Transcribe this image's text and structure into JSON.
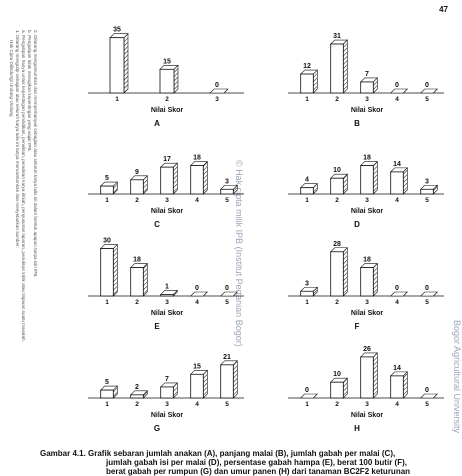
{
  "page_number": "47",
  "side_notes": [
    "Hak Cipta Dilindungi Undang-Undang",
    "1. Dilarang mengutip sebagian atau seluruh karya tulis ini tanpa mencantumkan dan menyebutkan sumber:",
    "a. Pengutipan hanya untuk kepentingan pendidikan, penelitian, penulisan karya ilmiah, penyusunan laporan, penulisan kritik atau tinjauan suatu masalah.",
    "b. Pengutipan tidak merugikan kepentingan yang wajar IPB.",
    "2. Dilarang mengumumkan dan memperbanyak sebagian atau seluruh karya tulis ini dalam bentuk apapun tanpa izin IPB."
  ],
  "watermarks": [
    "© Hak cipta milik IPB (Institut Pertanian Bogor)",
    "Bogor Agricultural University"
  ],
  "chart_data": [
    {
      "type": "bar",
      "panel": "A",
      "xlabel": "Nilai Skor",
      "categories": [
        "1",
        "2",
        "3"
      ],
      "values": [
        35,
        15,
        0
      ]
    },
    {
      "type": "bar",
      "panel": "B",
      "xlabel": "Nilai Skor",
      "categories": [
        "1",
        "2",
        "3",
        "4",
        "5"
      ],
      "values": [
        12,
        31,
        7,
        0,
        0
      ]
    },
    {
      "type": "bar",
      "panel": "C",
      "xlabel": "Nilai Skor",
      "categories": [
        "1",
        "2",
        "3",
        "4",
        "5"
      ],
      "values": [
        5,
        9,
        17,
        18,
        3
      ]
    },
    {
      "type": "bar",
      "panel": "D",
      "xlabel": "Nilai Skor",
      "categories": [
        "1",
        "2",
        "3",
        "4",
        "5"
      ],
      "values": [
        4,
        10,
        18,
        14,
        3
      ]
    },
    {
      "type": "bar",
      "panel": "E",
      "xlabel": "Nilai Skor",
      "categories": [
        "1",
        "2",
        "3",
        "4",
        "5"
      ],
      "values": [
        30,
        18,
        1,
        0,
        0
      ]
    },
    {
      "type": "bar",
      "panel": "F",
      "xlabel": "Nilai Skor",
      "categories": [
        "1",
        "2",
        "3",
        "4",
        "5"
      ],
      "values": [
        3,
        28,
        18,
        0,
        0
      ]
    },
    {
      "type": "bar",
      "panel": "G",
      "xlabel": "Nilai Skor",
      "categories": [
        "1",
        "2",
        "3",
        "4",
        "5"
      ],
      "values": [
        5,
        2,
        7,
        15,
        21
      ]
    },
    {
      "type": "bar",
      "panel": "H",
      "xlabel": "Nilai Skor",
      "categories": [
        "1",
        "2",
        "3",
        "4",
        "5"
      ],
      "values": [
        0,
        10,
        26,
        14,
        0
      ]
    }
  ],
  "caption": [
    "Gambar 4.1. Grafik sebaran jumlah anakan (A), panjang malai (B), jumlah gabah per malai (C),",
    "jumlah gabah isi per malai (D), persentase gabah hampa (E), berat 100 butir (F),",
    "berat gabah per rumpun (G) dan umur panen (H) dari tanaman BC2F2 keturunan"
  ]
}
